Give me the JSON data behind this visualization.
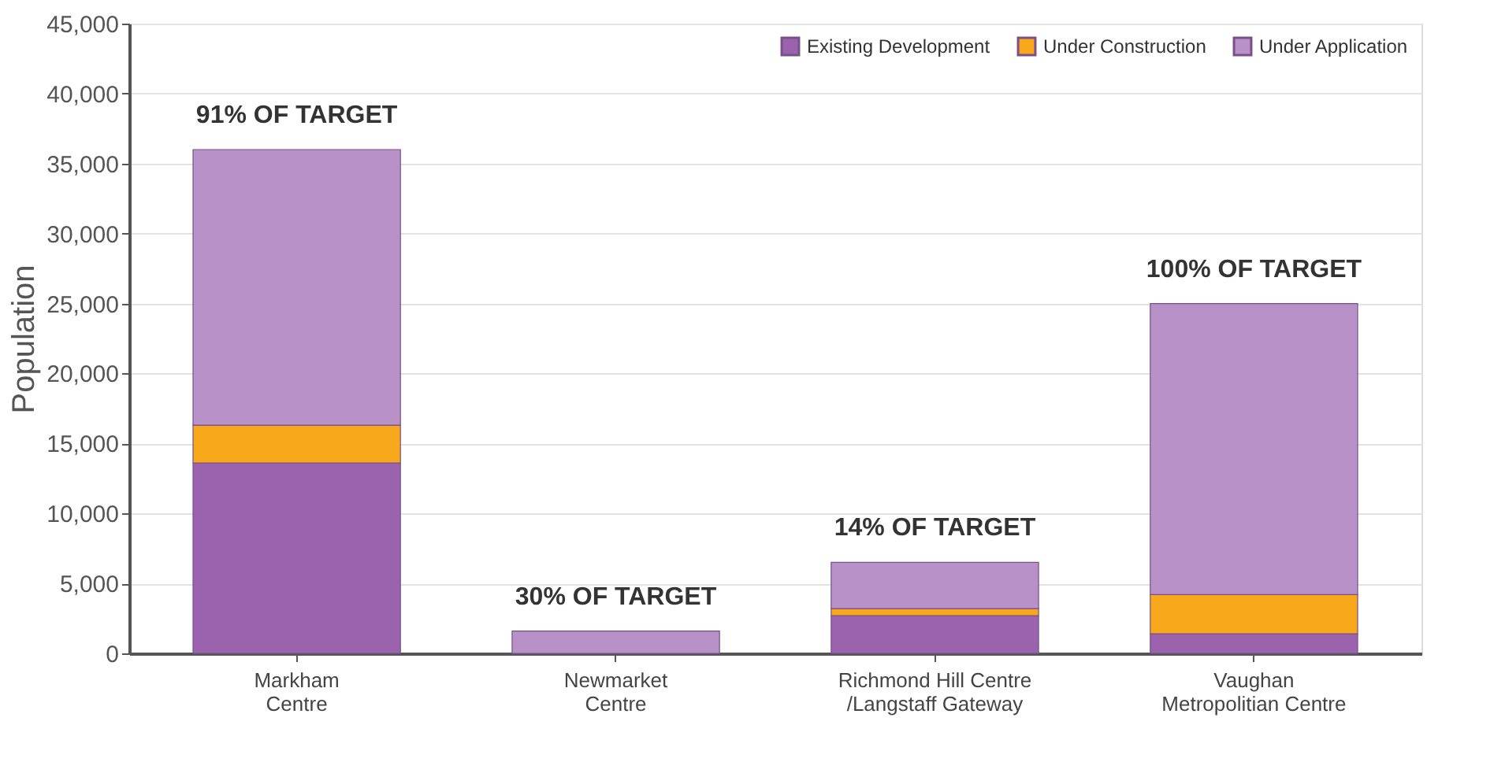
{
  "chart_data": {
    "type": "bar",
    "stacked": true,
    "ylabel": "Population",
    "categories": [
      "Markham\nCentre",
      "Newmarket\nCentre",
      "Richmond Hill Centre\n/Langstaff Gateway",
      "Vaughan\nMetropolitian Centre"
    ],
    "series": [
      {
        "name": "Existing Development",
        "color": "#9b62ae",
        "values": [
          13600,
          0,
          2700,
          1400
        ]
      },
      {
        "name": "Under Construction",
        "color": "#f7a81b",
        "values": [
          2700,
          0,
          500,
          2800
        ]
      },
      {
        "name": "Under Application",
        "color": "#b891c8",
        "values": [
          19700,
          1600,
          3300,
          20800
        ]
      }
    ],
    "ylim": [
      0,
      45000
    ],
    "yticks": [
      0,
      {
        "value": 5000,
        "label": "5,000"
      },
      {
        "value": 10000,
        "label": "10,000"
      },
      {
        "value": 15000,
        "label": "15,000"
      },
      {
        "value": 20000,
        "label": "20,000"
      },
      {
        "value": 25000,
        "label": "25,000"
      },
      {
        "value": 30000,
        "label": "30,000"
      },
      {
        "value": 35000,
        "label": "35,000"
      },
      {
        "value": 40000,
        "label": "40,000"
      },
      {
        "value": 45000,
        "label": "45,000"
      }
    ],
    "grid": "y",
    "legend": "top right",
    "annotations": [
      {
        "text": "91% OF TARGET",
        "x": "Markham\nCentre",
        "y": 36000
      },
      {
        "text": "30% OF TARGET",
        "x": "Newmarket\nCentre",
        "y": 1600
      },
      {
        "text": "14% OF TARGET",
        "x": "Richmond Hill Centre\n/Langstaff Gateway",
        "y": 6500
      },
      {
        "text": "100% OF TARGET",
        "x": "Vaughan\nMetropolitian Centre",
        "y": 25000
      }
    ]
  }
}
